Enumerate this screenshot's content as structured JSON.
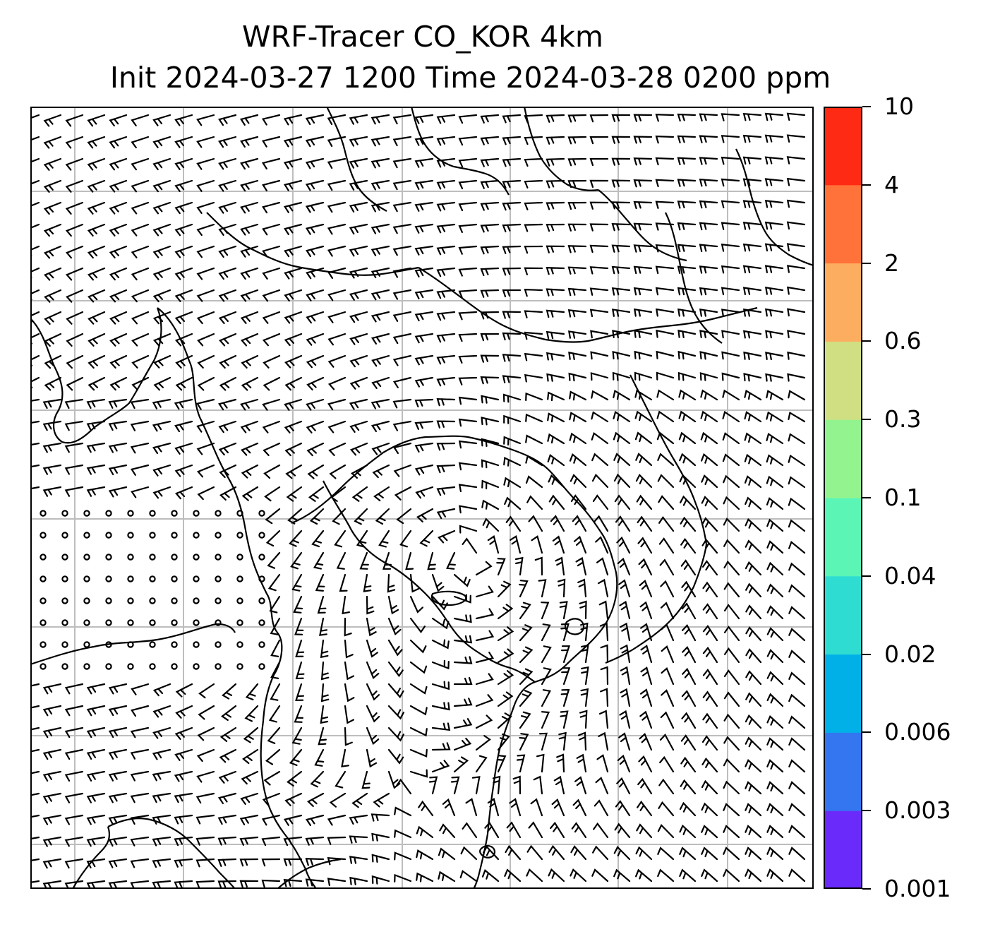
{
  "title": {
    "line1": "WRF-Tracer CO_KOR 4km",
    "line2": "Init 2024-03-27 1200 Time 2024-03-28 0200 ppm"
  },
  "colorbar": {
    "ticks": [
      "0.001",
      "0.003",
      "0.006",
      "0.02",
      "0.04",
      "0.1",
      "0.3",
      "0.6",
      "2",
      "4",
      "10"
    ],
    "colors": [
      "#6a2bfa",
      "#3376f0",
      "#02b0e8",
      "#2fdcd2",
      "#5bf5b6",
      "#93f48f",
      "#cfdf82",
      "#fdad60",
      "#ff7239",
      "#ff2a14"
    ]
  },
  "map": {
    "grid": "on",
    "grid_color": "#bdbdbd",
    "coast_color": "#000000",
    "barb_color": "#000000",
    "content": "wind barbs over Korean peninsula, Yellow Sea and Japan coastlines; no tracer shading visible"
  }
}
